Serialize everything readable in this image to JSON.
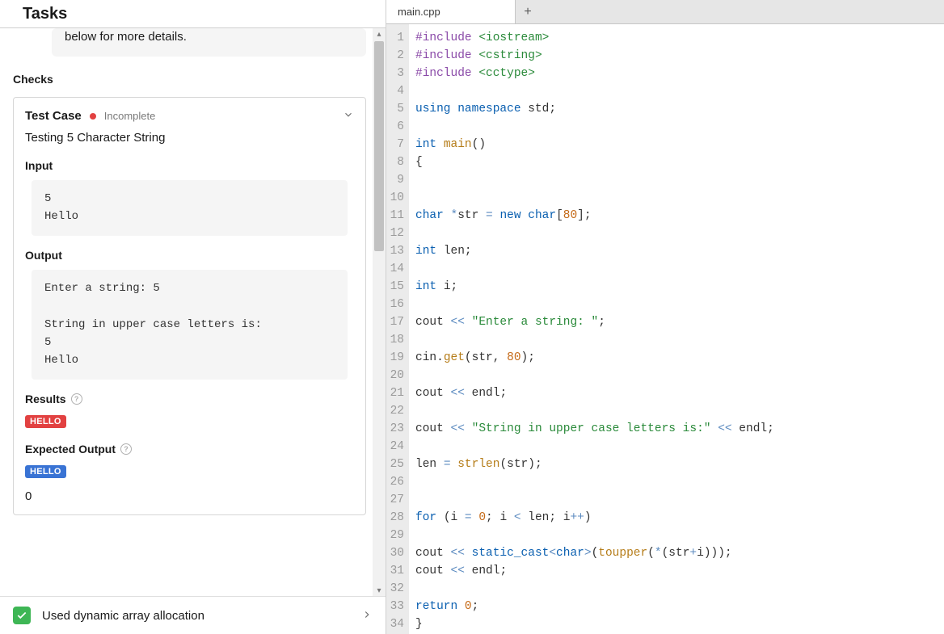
{
  "tasks": {
    "title": "Tasks",
    "info_tail": "below for more details.",
    "checks_label": "Checks",
    "test_case": {
      "title": "Test Case",
      "status": "Incomplete",
      "status_color": "#e24141",
      "desc": "Testing 5 Character String",
      "input_label": "Input",
      "input_text": "5\nHello",
      "output_label": "Output",
      "output_text": "Enter a string: 5\n\nString in upper case letters is:\n5\nHello",
      "results_label": "Results",
      "results_badge": "HELLO",
      "expected_label": "Expected Output",
      "expected_badge": "HELLO",
      "extra_line": "0"
    },
    "bottom": {
      "text": "Used dynamic array allocation",
      "check_color": "#3eb655"
    }
  },
  "editor": {
    "tab_name": "main.cpp",
    "gutter_bg": "#ebebeb",
    "code_font_size": 14.5,
    "line_height": 22,
    "colors": {
      "keyword": "#0a5fb0",
      "preproc": "#8a4aa8",
      "include": "#2a8a3a",
      "function": "#b57c18",
      "number": "#c56a18",
      "string": "#2a8a3a",
      "operator": "#5c8bc0",
      "text": "#333333"
    },
    "lines": [
      {
        "n": 1,
        "t": [
          [
            "pp",
            "#include "
          ],
          [
            "inc",
            "<iostream>"
          ]
        ]
      },
      {
        "n": 2,
        "t": [
          [
            "pp",
            "#include "
          ],
          [
            "inc",
            "<cstring>"
          ]
        ]
      },
      {
        "n": 3,
        "t": [
          [
            "pp",
            "#include "
          ],
          [
            "inc",
            "<cctype>"
          ]
        ]
      },
      {
        "n": 4,
        "t": []
      },
      {
        "n": 5,
        "t": [
          [
            "kw",
            "using "
          ],
          [
            "kw",
            "namespace "
          ],
          [
            "",
            "std"
          ],
          [
            "punc",
            ";"
          ]
        ]
      },
      {
        "n": 6,
        "t": []
      },
      {
        "n": 7,
        "t": [
          [
            "kw",
            "int "
          ],
          [
            "fn",
            "main"
          ],
          [
            "punc",
            "()"
          ]
        ]
      },
      {
        "n": 8,
        "t": [
          [
            "punc",
            "{"
          ]
        ]
      },
      {
        "n": 9,
        "t": []
      },
      {
        "n": 10,
        "t": []
      },
      {
        "n": 11,
        "t": [
          [
            "kw",
            "char "
          ],
          [
            "op",
            "*"
          ],
          [
            "",
            "str "
          ],
          [
            "op",
            "= "
          ],
          [
            "kw",
            "new "
          ],
          [
            "kw",
            "char"
          ],
          [
            "punc",
            "["
          ],
          [
            "num",
            "80"
          ],
          [
            "punc",
            "];"
          ]
        ]
      },
      {
        "n": 12,
        "t": []
      },
      {
        "n": 13,
        "t": [
          [
            "kw",
            "int "
          ],
          [
            "",
            "len"
          ],
          [
            "punc",
            ";"
          ]
        ]
      },
      {
        "n": 14,
        "t": []
      },
      {
        "n": 15,
        "t": [
          [
            "kw",
            "int "
          ],
          [
            "",
            "i"
          ],
          [
            "punc",
            ";"
          ]
        ]
      },
      {
        "n": 16,
        "t": []
      },
      {
        "n": 17,
        "t": [
          [
            "",
            "cout "
          ],
          [
            "op",
            "<< "
          ],
          [
            "str",
            "\"Enter a string: \""
          ],
          [
            "punc",
            ";"
          ]
        ]
      },
      {
        "n": 18,
        "t": []
      },
      {
        "n": 19,
        "t": [
          [
            "",
            "cin"
          ],
          [
            "punc",
            "."
          ],
          [
            "fn",
            "get"
          ],
          [
            "punc",
            "("
          ],
          [
            "",
            "str"
          ],
          [
            "punc",
            ", "
          ],
          [
            "num",
            "80"
          ],
          [
            "punc",
            ");"
          ]
        ]
      },
      {
        "n": 20,
        "t": []
      },
      {
        "n": 21,
        "t": [
          [
            "",
            "cout "
          ],
          [
            "op",
            "<< "
          ],
          [
            "",
            "endl"
          ],
          [
            "punc",
            ";"
          ]
        ]
      },
      {
        "n": 22,
        "t": []
      },
      {
        "n": 23,
        "t": [
          [
            "",
            "cout "
          ],
          [
            "op",
            "<< "
          ],
          [
            "str",
            "\"String in upper case letters is:\" "
          ],
          [
            "op",
            "<< "
          ],
          [
            "",
            "endl"
          ],
          [
            "punc",
            ";"
          ]
        ]
      },
      {
        "n": 24,
        "t": []
      },
      {
        "n": 25,
        "t": [
          [
            "",
            "len "
          ],
          [
            "op",
            "= "
          ],
          [
            "fn",
            "strlen"
          ],
          [
            "punc",
            "("
          ],
          [
            "",
            "str"
          ],
          [
            "punc",
            ");"
          ]
        ]
      },
      {
        "n": 26,
        "t": []
      },
      {
        "n": 27,
        "t": []
      },
      {
        "n": 28,
        "t": [
          [
            "kw",
            "for "
          ],
          [
            "punc",
            "("
          ],
          [
            "",
            "i "
          ],
          [
            "op",
            "= "
          ],
          [
            "num",
            "0"
          ],
          [
            "punc",
            "; "
          ],
          [
            "",
            "i "
          ],
          [
            "op",
            "< "
          ],
          [
            "",
            "len"
          ],
          [
            "punc",
            "; "
          ],
          [
            "",
            "i"
          ],
          [
            "op",
            "++"
          ],
          [
            "punc",
            ")"
          ]
        ]
      },
      {
        "n": 29,
        "t": []
      },
      {
        "n": 30,
        "t": [
          [
            "",
            "cout "
          ],
          [
            "op",
            "<< "
          ],
          [
            "kw",
            "static_cast"
          ],
          [
            "op",
            "<"
          ],
          [
            "kw",
            "char"
          ],
          [
            "op",
            ">"
          ],
          [
            "punc",
            "("
          ],
          [
            "fn",
            "toupper"
          ],
          [
            "punc",
            "("
          ],
          [
            "op",
            "*"
          ],
          [
            "punc",
            "("
          ],
          [
            "",
            "str"
          ],
          [
            "op",
            "+"
          ],
          [
            "",
            "i"
          ],
          [
            "punc",
            ")));"
          ]
        ]
      },
      {
        "n": 31,
        "t": [
          [
            "",
            "cout "
          ],
          [
            "op",
            "<< "
          ],
          [
            "",
            "endl"
          ],
          [
            "punc",
            ";"
          ]
        ]
      },
      {
        "n": 32,
        "t": []
      },
      {
        "n": 33,
        "t": [
          [
            "kw",
            "return "
          ],
          [
            "num",
            "0"
          ],
          [
            "punc",
            ";"
          ]
        ]
      },
      {
        "n": 34,
        "t": [
          [
            "punc",
            "}"
          ]
        ]
      }
    ]
  }
}
